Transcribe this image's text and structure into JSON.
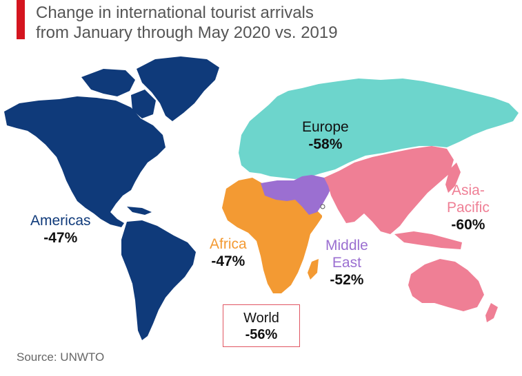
{
  "title": {
    "line1": "Change in international tourist arrivals",
    "line2": "from January through May 2020 vs. 2019"
  },
  "colors": {
    "accent": "#d4151f",
    "americas": "#0f3a7a",
    "europe": "#6dd5cc",
    "africa": "#f39a33",
    "middle_east": "#9b6fd1",
    "asia_pacific": "#ef7f95",
    "world_box_border": "#e05561"
  },
  "regions": [
    {
      "name": "Americas",
      "value": "-47%",
      "color": "#0f3a7a"
    },
    {
      "name": "Europe",
      "value": "-58%",
      "color": "#111111"
    },
    {
      "name": "Africa",
      "value": "-47%",
      "color": "#f39a33"
    },
    {
      "name_line1": "Middle",
      "name_line2": "East",
      "value": "-52%",
      "color": "#9b6fd1"
    },
    {
      "name_line1": "Asia-",
      "name_line2": "Pacific",
      "value": "-60%",
      "color": "#ef7f95"
    }
  ],
  "world": {
    "name": "World",
    "value": "-56%"
  },
  "source": "Source: UNWTO"
}
